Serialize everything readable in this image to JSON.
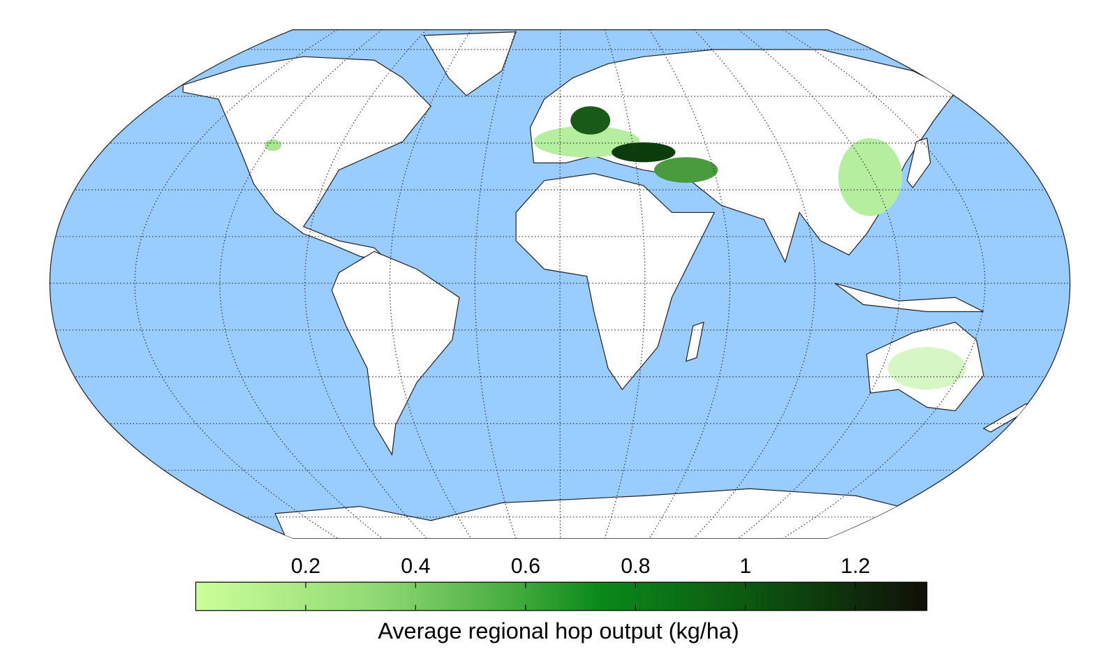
{
  "chart_data": {
    "type": "map",
    "colorbar_label": "Average regional hop output (kg/ha)",
    "clim": [
      0,
      1.33
    ],
    "cticks": [
      0.2,
      0.4,
      0.6,
      0.8,
      1,
      1.2
    ]
  }
}
